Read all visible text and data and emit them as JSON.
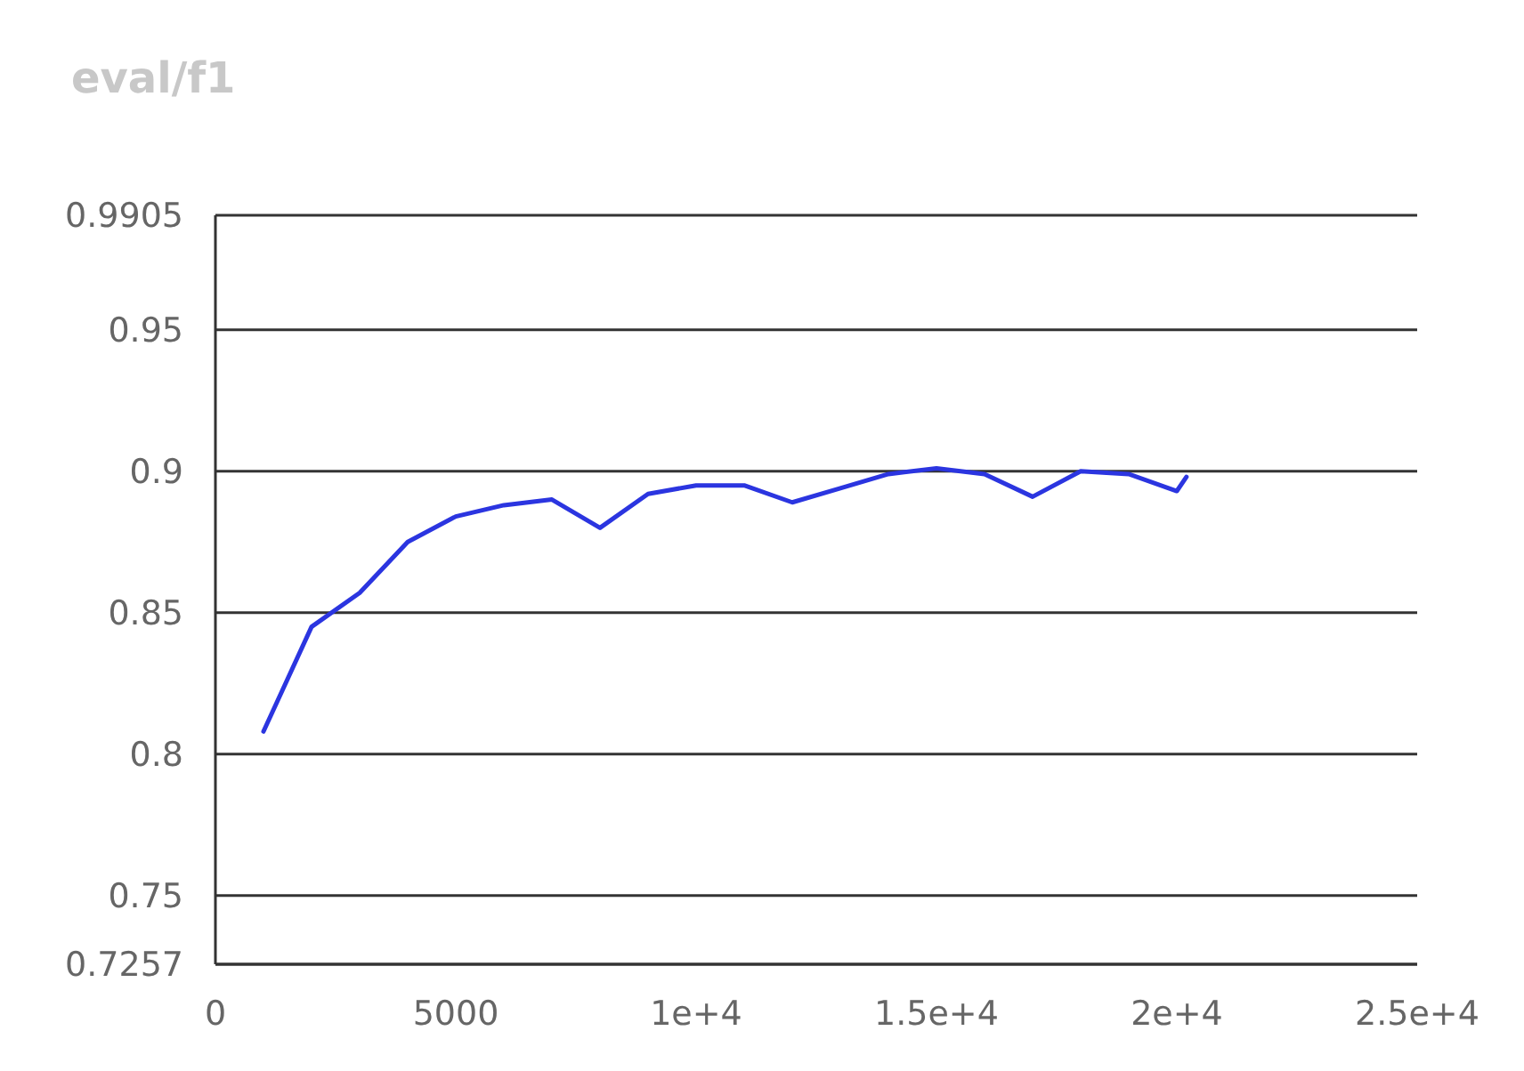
{
  "chart_data": {
    "type": "line",
    "title": "eval/f1",
    "x": [
      1000,
      2000,
      3000,
      4000,
      5000,
      6000,
      7000,
      8000,
      9000,
      10000,
      11000,
      12000,
      13000,
      14000,
      15000,
      16000,
      17000,
      18000,
      19000,
      20000,
      20200
    ],
    "series": [
      {
        "color": "#2b35e0",
        "values": [
          0.808,
          0.845,
          0.857,
          0.875,
          0.884,
          0.888,
          0.89,
          0.88,
          0.892,
          0.895,
          0.895,
          0.889,
          0.894,
          0.899,
          0.901,
          0.899,
          0.891,
          0.9,
          0.899,
          0.893,
          0.898
        ]
      }
    ],
    "xlim": [
      0,
      25000
    ],
    "xticks": [
      0,
      5000,
      {
        "value": 10000,
        "label": "1e+4"
      },
      {
        "value": 15000,
        "label": "1.5e+4"
      },
      {
        "value": 20000,
        "label": "2e+4"
      },
      {
        "value": 25000,
        "label": "2.5e+4"
      }
    ],
    "ylim": [
      0.7257,
      0.9905
    ],
    "yticks": [
      0.7257,
      0.75,
      0.8,
      0.85,
      0.9,
      0.95,
      0.9905
    ],
    "grid": "y",
    "marker": "none",
    "line_style": "solid"
  }
}
